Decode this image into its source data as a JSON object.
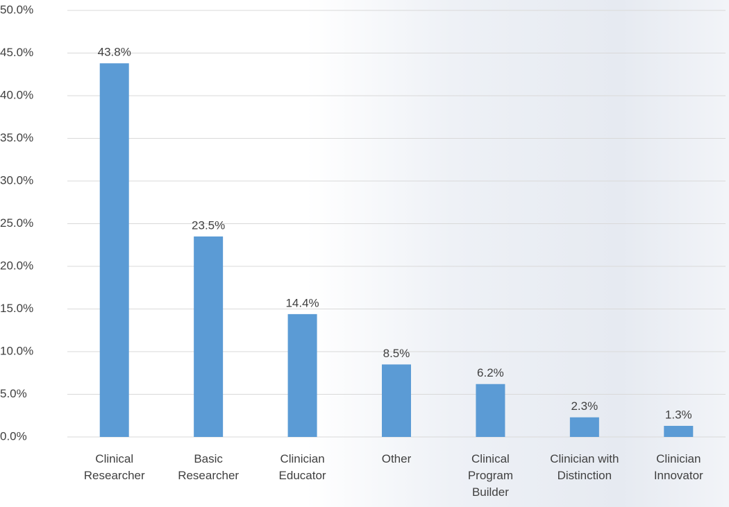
{
  "chart_data": {
    "type": "bar",
    "categories": [
      "Clinical\nResearcher",
      "Basic\nResearcher",
      "Clinician\nEducator",
      "Other",
      "Clinical\nProgram\nBuilder",
      "Clinician with\nDistinction",
      "Clinician\nInnovator"
    ],
    "values": [
      43.8,
      23.5,
      14.4,
      8.5,
      6.2,
      2.3,
      1.3
    ],
    "value_labels": [
      "43.8%",
      "23.5%",
      "14.4%",
      "8.5%",
      "6.2%",
      "2.3%",
      "1.3%"
    ],
    "color": "#5b9bd5",
    "ylim": [
      0,
      50
    ],
    "yticks": [
      {
        "value": 0,
        "label": "0.0%"
      },
      {
        "value": 5,
        "label": "5.0%"
      },
      {
        "value": 10,
        "label": "10.0%"
      },
      {
        "value": 15,
        "label": "15.0%"
      },
      {
        "value": 20,
        "label": "20.0%"
      },
      {
        "value": 25,
        "label": "25.0%"
      },
      {
        "value": 30,
        "label": "30.0%"
      },
      {
        "value": 35,
        "label": "35.0%"
      },
      {
        "value": 40,
        "label": "40.0%"
      },
      {
        "value": 45,
        "label": "45.0%"
      },
      {
        "value": 50,
        "label": "50.0%"
      }
    ],
    "grid": true
  }
}
